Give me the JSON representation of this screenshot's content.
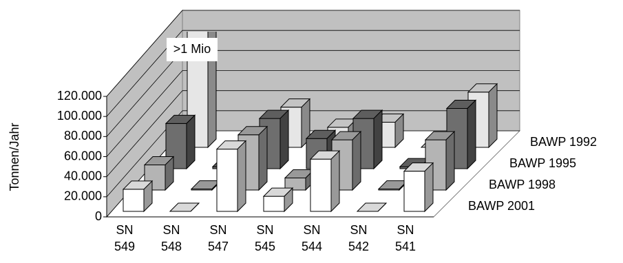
{
  "chart_data": {
    "type": "bar3d",
    "y_label": "Tonnen/Jahr",
    "annotation": ">1 Mio",
    "categories": [
      "SN 549",
      "SN 548",
      "SN 547",
      "SN 545",
      "SN 544",
      "SN 542",
      "SN 541"
    ],
    "series": [
      {
        "name": "BAWP 2001",
        "color": "#ffffff",
        "values": [
          22000,
          0,
          62000,
          15000,
          52000,
          0,
          40000
        ]
      },
      {
        "name": "BAWP 1998",
        "color": "#b4b4b4",
        "values": [
          25000,
          1000,
          55000,
          12000,
          50000,
          1000,
          50000
        ]
      },
      {
        "name": "BAWP 1995",
        "color": "#6e6e6e",
        "values": [
          45000,
          2000,
          50000,
          30000,
          50000,
          2000,
          60000
        ]
      },
      {
        "name": "BAWP 1992",
        "color": "#e6e6e6",
        "values": [
          1000000,
          0,
          40000,
          20000,
          25000,
          0,
          55000
        ]
      }
    ],
    "ylim": [
      0,
      120000
    ],
    "yticks": [
      0,
      {
        "value": 20000,
        "label": "20.000"
      },
      {
        "value": 40000,
        "label": "40.000"
      },
      {
        "value": 60000,
        "label": "60.000"
      },
      {
        "value": 80000,
        "label": "80.000"
      },
      {
        "value": 100000,
        "label": "100.000"
      },
      {
        "value": 120000,
        "label": "120.000"
      }
    ],
    "grid": true
  }
}
